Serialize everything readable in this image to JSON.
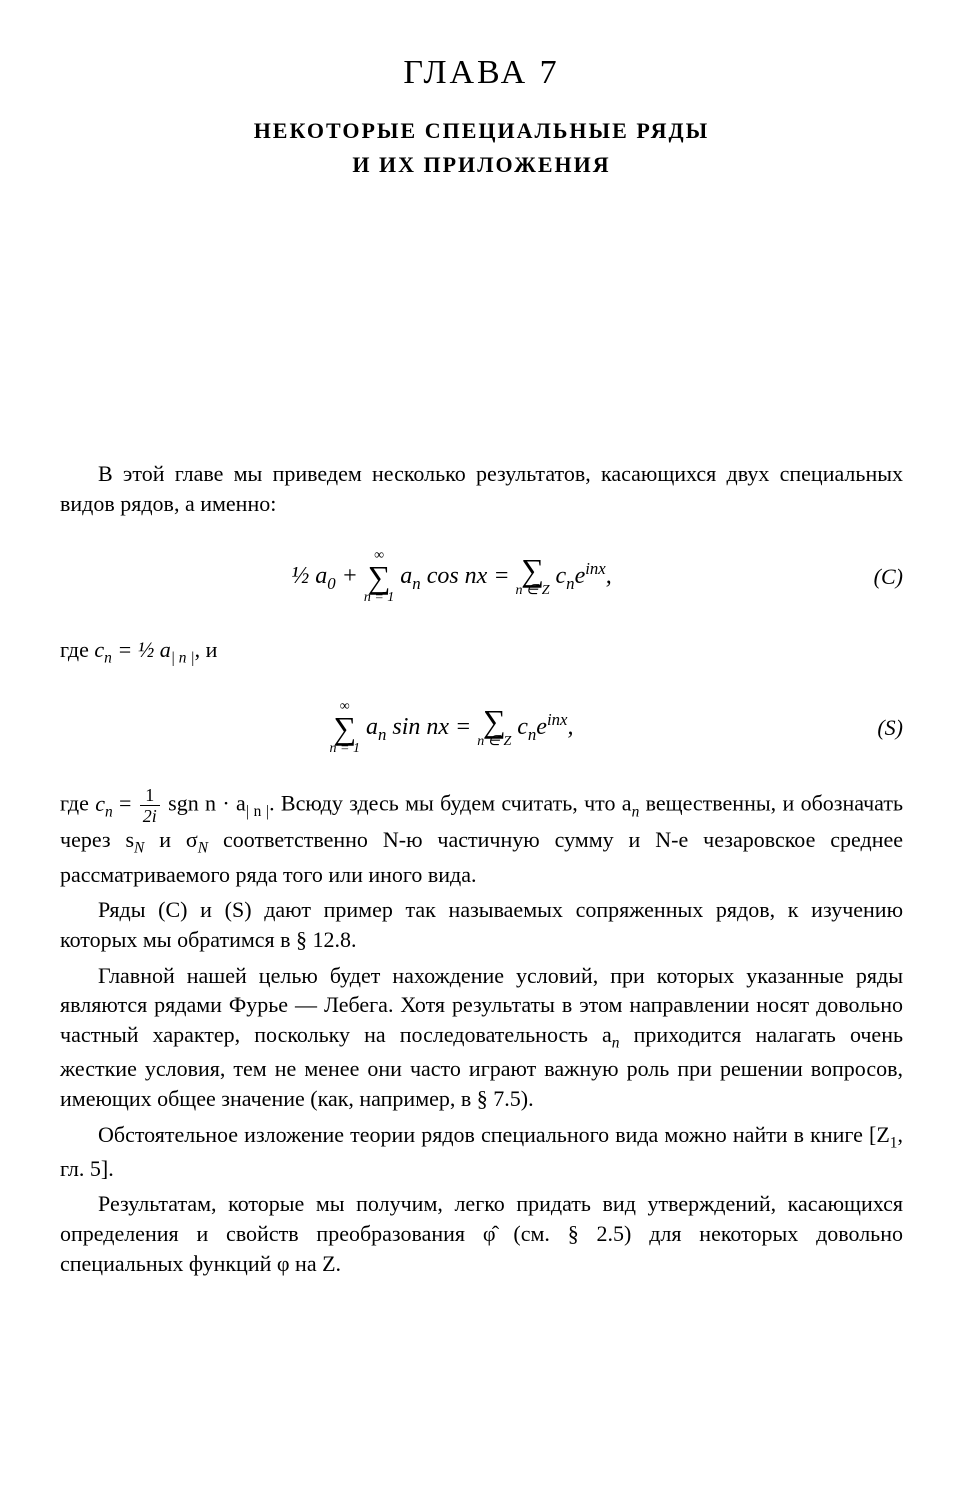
{
  "chapter": {
    "title": "ГЛАВА 7",
    "subtitle1": "НЕКОТОРЫЕ СПЕЦИАЛЬНЫЕ РЯДЫ",
    "subtitle2": "И ИХ ПРИЛОЖЕНИЯ"
  },
  "intro": "В этой главе мы приведем несколько результатов, касающихся двух специальных видов рядов, а именно:",
  "formulaC": {
    "lhs_leading": "½ a",
    "lhs_sub": "0",
    "plus": " + ",
    "sum1_top": "∞",
    "sum1_bottom": "n = 1",
    "term1": " a",
    "term1_sub": "n",
    "term1_cos": " cos nx = ",
    "sum2_top": " ",
    "sum2_bottom": "n ∈ Z",
    "term2": " c",
    "term2_sub": "n",
    "term2_exp": "e",
    "term2_sup": "inx",
    "comma": ",",
    "label": "(C)"
  },
  "whereC": {
    "prefix": "где ",
    "c": "c",
    "c_sub": "n",
    "eq": " = ½ a",
    "a_sub": "| n |",
    "suffix": ", и"
  },
  "formulaS": {
    "sum1_top": "∞",
    "sum1_bottom": "n = 1",
    "term1": " a",
    "term1_sub": "n",
    "term1_sin": " sin nx = ",
    "sum2_top": " ",
    "sum2_bottom": "n ∈ Z",
    "term2": " c",
    "term2_sub": "n",
    "term2_exp": "e",
    "term2_sup": "inx",
    "comma": ",",
    "label": "(S)"
  },
  "whereS": {
    "prefix": "где ",
    "c": "c",
    "c_sub": "n",
    "eq": " = ",
    "frac_num": "1",
    "frac_den": "2i",
    "sgn": " sgn n · a",
    "a_sub": "| n |",
    "dot": ". ",
    "rest": "Всюду здесь мы будем считать, что a",
    "an_sub": "n",
    "rest2": " вещественны, и обозначать через s",
    "sN_sub": "N",
    "rest3": " и σ",
    "sigmaN_sub": "N",
    "rest4": " соответственно N-ю частичную сумму и N-е чезаровское среднее рассматриваемого ряда того или иного вида."
  },
  "para2": "Ряды (C) и (S) дают пример так называемых сопряженных рядов, к изучению которых мы обратимся в § 12.8.",
  "para3_a": "Главной нашей целью будет нахождение условий, при которых указанные ряды являются рядами Фурье — Лебега. Хотя результаты в этом направлении носят довольно частный характер, поскольку на последовательность a",
  "para3_sub": "n",
  "para3_b": " приходится налагать очень жесткие условия, тем не менее они часто играют важную роль при решении вопросов, имеющих общее значение (как, например, в § 7.5).",
  "para4_a": "Обстоятельное изложение теории рядов специального вида можно найти в книге [Z",
  "para4_sub": "1",
  "para4_b": ", гл. 5].",
  "para5": "Результатам, которые мы получим, легко придать вид утверждений, касающихся определения и свойств преобразования φ̂ (см. § 2.5) для некоторых довольно специальных функций φ на Z."
}
